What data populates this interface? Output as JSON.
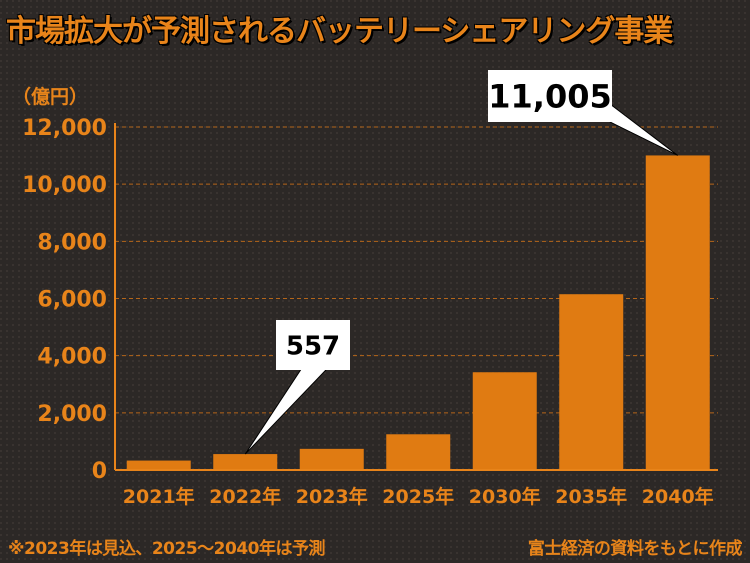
{
  "title": "市場拡大が予測されるバッテリーシェアリング事業",
  "unit_label": "（億円）",
  "note": "※2023年は見込、2025〜2040年は予測",
  "source": "富士経済の資料をもとに作成",
  "colors": {
    "bar": "#e07b12",
    "accent": "#e8841a",
    "grid": "#b5661a",
    "background": "#2c2826"
  },
  "chart_data": {
    "type": "bar",
    "title": "市場拡大が予測されるバッテリーシェアリング事業",
    "ylabel": "（億円）",
    "xlabel": "",
    "ylim": [
      0,
      12000
    ],
    "yticks": [
      0,
      2000,
      4000,
      6000,
      8000,
      10000,
      12000
    ],
    "ytick_labels": [
      "0",
      "2,000",
      "4,000",
      "6,000",
      "8,000",
      "10,000",
      "12,000"
    ],
    "categories": [
      "2021年",
      "2022年",
      "2023年",
      "2025年",
      "2030年",
      "2035年",
      "2040年"
    ],
    "values": [
      330,
      557,
      740,
      1250,
      3420,
      6150,
      11005
    ],
    "callouts": [
      {
        "category_index": 1,
        "label": "557"
      },
      {
        "category_index": 6,
        "label": "11,005"
      }
    ],
    "grid": true
  }
}
